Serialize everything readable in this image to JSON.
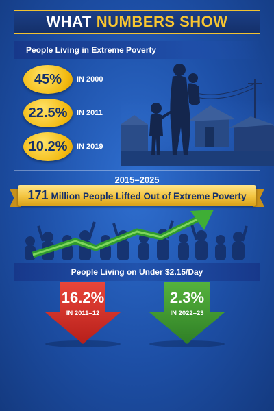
{
  "header": {
    "title_white": "WHAT",
    "title_gold": "NUMBERS SHOW"
  },
  "extreme_poverty": {
    "heading": "People Living in Extreme Poverty",
    "stats": [
      {
        "value": "45%",
        "year": "IN 2000"
      },
      {
        "value": "22.5%",
        "year": "IN 2011"
      },
      {
        "value": "10.2%",
        "year": "IN 2019"
      }
    ]
  },
  "highlight": {
    "period": "2015–2025",
    "number": "171",
    "text": "Million People Lifted Out of Extreme Poverty"
  },
  "under_215": {
    "heading": "People Living on Under $2.15/Day",
    "before": {
      "value": "16.2%",
      "period": "IN 2011–12",
      "color": "#d8322a"
    },
    "after": {
      "value": "2.3%",
      "period": "IN 2022–23",
      "color": "#3f9a33"
    }
  },
  "colors": {
    "gold": "#f7c531",
    "navy": "#14306a",
    "arrow_green": "#2f9a2f"
  },
  "icons": [
    "family-illustration",
    "crowd-illustration",
    "trend-up-arrow-icon",
    "down-arrow-icon"
  ]
}
